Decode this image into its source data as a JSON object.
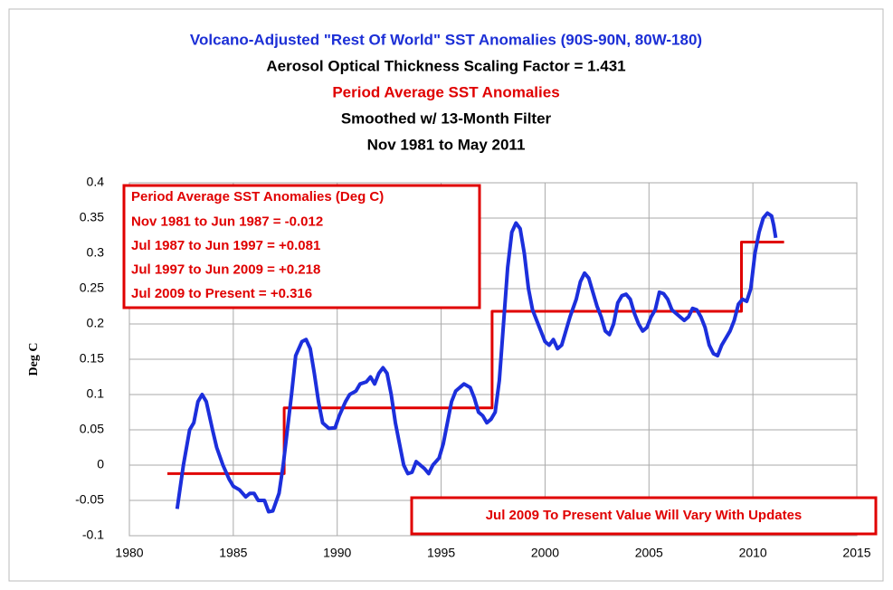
{
  "chart_data": {
    "type": "line",
    "titles": [
      {
        "text": "Volcano-Adjusted \"Rest Of World\" SST Anomalies (90S-90N, 80W-180)",
        "color": "#1c2fd6"
      },
      {
        "text": "Aerosol Optical Thickness Scaling Factor = 1.431",
        "color": "#000000"
      },
      {
        "text": "Period Average SST Anomalies",
        "color": "#e00000"
      },
      {
        "text": "Smoothed w/ 13-Month Filter",
        "color": "#000000"
      },
      {
        "text": "Nov 1981 to May 2011",
        "color": "#000000"
      }
    ],
    "ylabel": "Deg C",
    "xlim": [
      1980,
      2015
    ],
    "xticks": [
      1980,
      1985,
      1990,
      1995,
      2000,
      2005,
      2010,
      2015
    ],
    "ylim": [
      -0.1,
      0.4
    ],
    "yticks": [
      -0.1,
      -0.05,
      0,
      0.05,
      0.1,
      0.15,
      0.2,
      0.25,
      0.3,
      0.35,
      0.4
    ],
    "grid": true,
    "series": [
      {
        "color": "#1c2fdc",
        "width": 4,
        "x": [
          1982.3,
          1982.6,
          1982.9,
          1983.1,
          1983.3,
          1983.5,
          1983.7,
          1984.0,
          1984.2,
          1984.5,
          1984.8,
          1985.0,
          1985.3,
          1985.6,
          1985.8,
          1986.0,
          1986.2,
          1986.5,
          1986.7,
          1986.9,
          1987.2,
          1987.4,
          1987.6,
          1987.8,
          1988.0,
          1988.3,
          1988.5,
          1988.7,
          1988.9,
          1989.1,
          1989.3,
          1989.6,
          1989.9,
          1990.1,
          1990.4,
          1990.6,
          1990.9,
          1991.1,
          1991.4,
          1991.6,
          1991.8,
          1992.0,
          1992.2,
          1992.4,
          1992.6,
          1992.8,
          1993.0,
          1993.2,
          1993.4,
          1993.6,
          1993.8,
          1994.0,
          1994.2,
          1994.4,
          1994.6,
          1994.9,
          1995.1,
          1995.3,
          1995.5,
          1995.7,
          1995.9,
          1996.1,
          1996.4,
          1996.6,
          1996.8,
          1997.0,
          1997.2,
          1997.4,
          1997.6,
          1997.8,
          1998.0,
          1998.2,
          1998.4,
          1998.6,
          1998.8,
          1999.0,
          1999.2,
          1999.4,
          1999.6,
          1999.8,
          2000.0,
          2000.2,
          2000.4,
          2000.6,
          2000.8,
          2001.0,
          2001.2,
          2001.5,
          2001.7,
          2001.9,
          2002.1,
          2002.3,
          2002.5,
          2002.7,
          2002.9,
          2003.1,
          2003.3,
          2003.5,
          2003.7,
          2003.9,
          2004.1,
          2004.3,
          2004.5,
          2004.7,
          2004.9,
          2005.1,
          2005.3,
          2005.5,
          2005.7,
          2005.9,
          2006.1,
          2006.3,
          2006.5,
          2006.7,
          2006.9,
          2007.1,
          2007.3,
          2007.5,
          2007.7,
          2007.9,
          2008.1,
          2008.3,
          2008.5,
          2008.7,
          2008.9,
          2009.1,
          2009.3,
          2009.5,
          2009.7,
          2009.9,
          2010.1,
          2010.3,
          2010.5,
          2010.7,
          2010.9,
          2011.0,
          2011.1
        ],
        "values": [
          -0.062,
          0.0,
          0.05,
          0.06,
          0.09,
          0.1,
          0.09,
          0.05,
          0.025,
          0.0,
          -0.02,
          -0.03,
          -0.035,
          -0.045,
          -0.04,
          -0.04,
          -0.05,
          -0.05,
          -0.066,
          -0.065,
          -0.04,
          0.0,
          0.05,
          0.1,
          0.155,
          0.175,
          0.178,
          0.165,
          0.13,
          0.09,
          0.06,
          0.052,
          0.053,
          0.07,
          0.09,
          0.1,
          0.105,
          0.115,
          0.118,
          0.125,
          0.115,
          0.13,
          0.138,
          0.13,
          0.1,
          0.06,
          0.03,
          0.0,
          -0.012,
          -0.01,
          0.005,
          0.0,
          -0.005,
          -0.012,
          0.0,
          0.01,
          0.03,
          0.06,
          0.09,
          0.105,
          0.11,
          0.115,
          0.11,
          0.095,
          0.075,
          0.07,
          0.06,
          0.065,
          0.075,
          0.12,
          0.2,
          0.28,
          0.33,
          0.343,
          0.335,
          0.3,
          0.25,
          0.22,
          0.205,
          0.19,
          0.175,
          0.17,
          0.178,
          0.165,
          0.17,
          0.19,
          0.21,
          0.235,
          0.26,
          0.272,
          0.265,
          0.245,
          0.225,
          0.21,
          0.19,
          0.185,
          0.2,
          0.23,
          0.24,
          0.242,
          0.235,
          0.215,
          0.2,
          0.19,
          0.195,
          0.21,
          0.22,
          0.245,
          0.243,
          0.235,
          0.22,
          0.215,
          0.21,
          0.205,
          0.21,
          0.222,
          0.22,
          0.21,
          0.195,
          0.17,
          0.158,
          0.155,
          0.17,
          0.18,
          0.19,
          0.205,
          0.228,
          0.235,
          0.232,
          0.25,
          0.3,
          0.33,
          0.35,
          0.357,
          0.353,
          0.34,
          0.322
        ]
      },
      {
        "color": "#e00000",
        "width": 3,
        "x": [
          1981.83,
          1987.45,
          1987.45,
          1997.45,
          1997.45,
          2009.45,
          2009.45,
          2011.5
        ],
        "values": [
          -0.012,
          -0.012,
          0.081,
          0.081,
          0.218,
          0.218,
          0.316,
          0.316
        ]
      }
    ],
    "annotations": [
      {
        "lines": [
          "Period Average SST Anomalies (Deg C)",
          "Nov 1981 to Jun 1987 =  -0.012",
          "Jul 1987 to Jun 1997  = +0.081",
          "Jul 1997 to Jun 2009  = +0.218",
          "Jul 2009 to Present    = +0.316"
        ]
      },
      {
        "lines": [
          "Jul 2009 To Present Value Will Vary With Updates"
        ]
      }
    ]
  }
}
